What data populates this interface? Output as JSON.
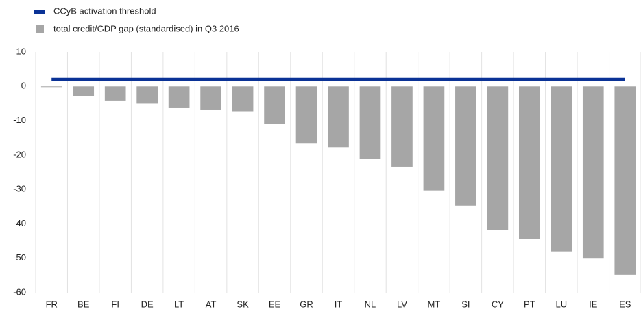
{
  "chart_data": {
    "type": "bar",
    "categories": [
      "FR",
      "BE",
      "FI",
      "DE",
      "LT",
      "AT",
      "SK",
      "EE",
      "GR",
      "IT",
      "NL",
      "LV",
      "MT",
      "SI",
      "CY",
      "PT",
      "LU",
      "IE",
      "ES"
    ],
    "series": [
      {
        "name": "CCyB activation threshold",
        "type": "line",
        "color": "#0a3296",
        "values": [
          2,
          2,
          2,
          2,
          2,
          2,
          2,
          2,
          2,
          2,
          2,
          2,
          2,
          2,
          2,
          2,
          2,
          2,
          2
        ]
      },
      {
        "name": "total credit/GDP gap (standardised) in Q3 2016",
        "type": "bar",
        "color": "#a6a6a6",
        "values": [
          -0.2,
          -2.9,
          -4.3,
          -5.0,
          -6.3,
          -6.9,
          -7.4,
          -11.0,
          -16.5,
          -17.7,
          -21.2,
          -23.4,
          -30.3,
          -34.7,
          -41.8,
          -44.4,
          -48.0,
          -50.1,
          -54.8
        ]
      }
    ],
    "ylim": [
      -60,
      10
    ],
    "yticks": [
      -60,
      -50,
      -40,
      -30,
      -20,
      -10,
      0,
      10
    ],
    "grid": true
  }
}
